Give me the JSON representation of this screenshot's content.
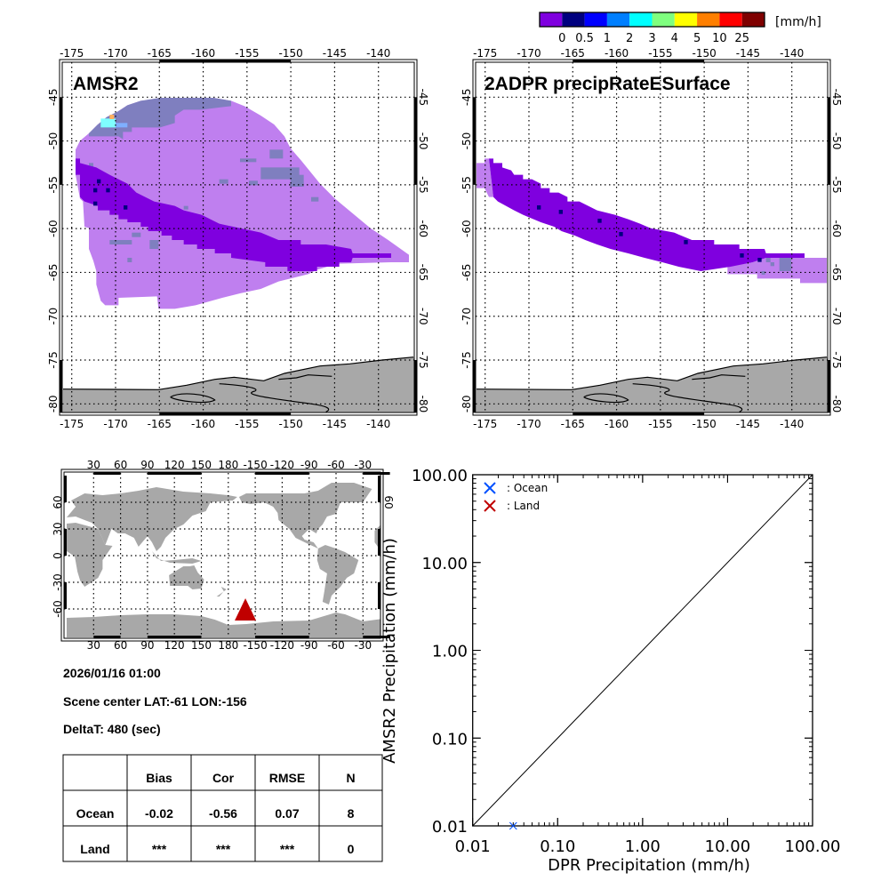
{
  "colorbar": {
    "labels": [
      "0",
      "0.5",
      "1",
      "2",
      "3",
      "4",
      "5",
      "10",
      "25"
    ],
    "units": "[mm/h]",
    "colors": [
      "#7f00df",
      "#00007f",
      "#0000ff",
      "#007fff",
      "#00ffff",
      "#7fff7f",
      "#ffff00",
      "#ff7f00",
      "#ff0000",
      "#7f0000"
    ]
  },
  "maps": {
    "amsr2_title": "AMSR2",
    "dpr_title": "2ADPR precipRateESurface",
    "lon_ticks": [
      "-175",
      "-170",
      "-165",
      "-160",
      "-155",
      "-150",
      "-145",
      "-140"
    ],
    "lat_ticks": [
      "-45",
      "-50",
      "-55",
      "-60",
      "-65",
      "-70",
      "-75",
      "-80"
    ],
    "colors": {
      "light_rain": "#bf7fef",
      "dark_rain": "#7f00df",
      "navy": "#00007f",
      "slate": "#7f7fbf",
      "land": "#a8a8a8"
    }
  },
  "locator": {
    "lon_ticks": [
      "30",
      "60",
      "90",
      "120",
      "150",
      "180",
      "-150",
      "-120",
      "-90",
      "-60",
      "-30"
    ],
    "lat_ticks": [
      "60",
      "30",
      "0",
      "-30",
      "-60"
    ],
    "scene_marker": {
      "lat": -61,
      "lon": -156,
      "color": "#c00000"
    }
  },
  "info": {
    "datetime": "2026/01/16 01:00",
    "scene_center": "Scene center LAT:-61   LON:-156",
    "deltat": "DeltaT:  480 (sec)"
  },
  "table": {
    "headers": [
      "",
      "Bias",
      "Cor",
      "RMSE",
      "N"
    ],
    "rows": [
      [
        "Ocean",
        "-0.02",
        "-0.56",
        "0.07",
        "8"
      ],
      [
        "Land",
        "***",
        "***",
        "***",
        "0"
      ]
    ]
  },
  "chart_data": {
    "type": "scatter",
    "xlabel": "DPR Precipitation (mm/h)",
    "ylabel": "AMSR2 Precipitation (mm/h)",
    "xscale": "log",
    "yscale": "log",
    "xlim": [
      0.01,
      100
    ],
    "ylim": [
      0.01,
      100
    ],
    "x_tick_labels": [
      "0.01",
      "0.10",
      "1.00",
      "10.00",
      "100.00"
    ],
    "y_tick_labels": [
      "0.01",
      "0.10",
      "1.00",
      "10.00",
      "100.00"
    ],
    "reference_line": "1:1",
    "grid": false,
    "legend_placement": "top-left",
    "legend": [
      {
        "label": ": Ocean",
        "color": "#0050ff"
      },
      {
        "label": ": Land",
        "color": "#c00000"
      }
    ],
    "series": [
      {
        "name": "Ocean",
        "color": "#0050ff",
        "points": [
          [
            0.03,
            0.01
          ]
        ]
      },
      {
        "name": "Land",
        "color": "#c00000",
        "points": []
      }
    ]
  }
}
